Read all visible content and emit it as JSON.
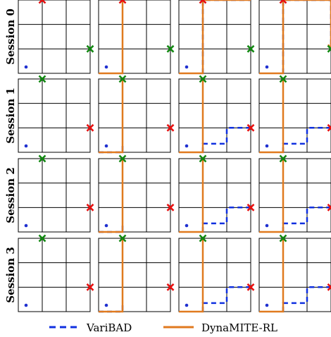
{
  "sessions": [
    {
      "label": "Session 0",
      "start": [
        0,
        0
      ],
      "red_goal": [
        1,
        3
      ],
      "green_goal": [
        3,
        1
      ],
      "variBAD": [
        [],
        [],
        [
          [
            1,
            0
          ],
          [
            1,
            3
          ],
          [
            2,
            3
          ],
          [
            3,
            3
          ]
        ],
        [
          [
            1,
            0
          ],
          [
            1,
            3
          ],
          [
            3,
            3
          ],
          [
            3,
            1
          ]
        ]
      ],
      "dynamite": [
        [],
        [
          [
            0,
            0
          ],
          [
            1,
            0
          ],
          [
            1,
            3
          ]
        ],
        [
          [
            0,
            0
          ],
          [
            1,
            0
          ],
          [
            1,
            3
          ],
          [
            3,
            3
          ]
        ],
        [
          [
            0,
            0
          ],
          [
            1,
            0
          ],
          [
            1,
            3
          ],
          [
            3,
            3
          ],
          [
            3,
            1
          ]
        ]
      ]
    },
    {
      "label": "Session 1",
      "start": [
        0,
        0
      ],
      "red_goal": [
        3,
        1
      ],
      "green_goal": [
        1,
        3
      ],
      "variBAD": [
        [],
        [
          [
            0,
            0
          ],
          [
            1,
            0
          ],
          [
            1,
            0.35
          ]
        ],
        [
          [
            1,
            0
          ],
          [
            1,
            0.35
          ],
          [
            2,
            0.35
          ],
          [
            2,
            1
          ],
          [
            3,
            1
          ]
        ],
        [
          [
            1,
            0
          ],
          [
            1,
            0.35
          ],
          [
            2,
            0.35
          ],
          [
            2,
            1
          ],
          [
            3,
            1
          ]
        ]
      ],
      "dynamite": [
        [],
        [
          [
            0,
            0
          ],
          [
            1,
            0
          ],
          [
            1,
            3
          ]
        ],
        [
          [
            0,
            0
          ],
          [
            1,
            0
          ],
          [
            1,
            3
          ]
        ],
        [
          [
            0,
            0
          ],
          [
            1,
            0
          ],
          [
            1,
            3
          ]
        ]
      ]
    },
    {
      "label": "Session 2",
      "start": [
        0,
        0
      ],
      "red_goal": [
        3,
        1
      ],
      "green_goal": [
        1,
        3
      ],
      "variBAD": [
        [],
        [
          [
            0,
            0
          ],
          [
            1,
            0
          ],
          [
            1,
            0.35
          ]
        ],
        [
          [
            1,
            0
          ],
          [
            1,
            0.35
          ],
          [
            2,
            0.35
          ],
          [
            2,
            1
          ],
          [
            3,
            1
          ]
        ],
        [
          [
            1,
            0
          ],
          [
            1,
            0.35
          ],
          [
            2,
            0.35
          ],
          [
            2,
            1
          ],
          [
            3,
            1
          ]
        ]
      ],
      "dynamite": [
        [],
        [
          [
            0,
            0
          ],
          [
            1,
            0
          ],
          [
            1,
            3
          ]
        ],
        [
          [
            0,
            0
          ],
          [
            1,
            0
          ],
          [
            1,
            3
          ]
        ],
        [
          [
            0,
            0
          ],
          [
            1,
            0
          ],
          [
            1,
            3
          ]
        ]
      ]
    },
    {
      "label": "Session 3",
      "start": [
        0,
        0
      ],
      "red_goal": [
        3,
        1
      ],
      "green_goal": [
        1,
        3
      ],
      "variBAD": [
        [],
        [
          [
            0,
            0
          ],
          [
            1,
            0
          ],
          [
            1,
            0.35
          ]
        ],
        [
          [
            1,
            0
          ],
          [
            1,
            0.35
          ],
          [
            2,
            0.35
          ],
          [
            2,
            1
          ],
          [
            3,
            1
          ]
        ],
        [
          [
            1,
            0
          ],
          [
            1,
            0.35
          ],
          [
            2,
            0.35
          ],
          [
            2,
            1
          ],
          [
            3,
            1
          ]
        ]
      ],
      "dynamite": [
        [],
        [
          [
            0,
            0
          ],
          [
            1,
            0
          ],
          [
            1,
            3
          ]
        ],
        [
          [
            0,
            0
          ],
          [
            1,
            0
          ],
          [
            1,
            3
          ]
        ],
        [
          [
            0,
            0
          ],
          [
            1,
            0
          ],
          [
            1,
            3
          ]
        ]
      ]
    }
  ],
  "legend": {
    "variBAD": "VariBAD",
    "dynamite": "DynaMITE-RL"
  },
  "colors": {
    "variBAD": "#1030e0",
    "dynamite": "#e07a1f",
    "red": "#e81010",
    "green": "#118811",
    "start": "#1f30d0"
  }
}
